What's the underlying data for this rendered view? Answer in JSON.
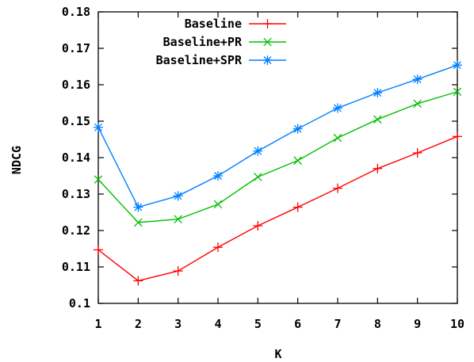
{
  "chart_data": {
    "type": "line",
    "title": "",
    "xlabel": "K",
    "ylabel": "NDCG",
    "x": [
      1,
      2,
      3,
      4,
      5,
      6,
      7,
      8,
      9,
      10
    ],
    "xticks": [
      "1",
      "2",
      "3",
      "4",
      "5",
      "6",
      "7",
      "8",
      "9",
      "10"
    ],
    "yticks": [
      "0.1",
      "0.11",
      "0.12",
      "0.13",
      "0.14",
      "0.15",
      "0.16",
      "0.17",
      "0.18"
    ],
    "ytick_values": [
      0.1,
      0.11,
      0.12,
      0.13,
      0.14,
      0.15,
      0.16,
      0.17,
      0.18
    ],
    "xlim": [
      1,
      10
    ],
    "ylim": [
      0.1,
      0.18
    ],
    "grid": false,
    "legend_position": "top-right",
    "series": [
      {
        "name": "Baseline",
        "color": "#ff0000",
        "marker": "plus",
        "values": [
          0.1147,
          0.1062,
          0.1089,
          0.1154,
          0.1213,
          0.1264,
          0.1316,
          0.137,
          0.1413,
          0.1458
        ]
      },
      {
        "name": "Baseline+PR",
        "color": "#00c000",
        "marker": "cross",
        "values": [
          0.134,
          0.1222,
          0.1231,
          0.1272,
          0.1347,
          0.1392,
          0.1454,
          0.1505,
          0.1548,
          0.1581
        ]
      },
      {
        "name": "Baseline+SPR",
        "color": "#0080ff",
        "marker": "star",
        "values": [
          0.1483,
          0.1264,
          0.1295,
          0.135,
          0.1418,
          0.1479,
          0.1536,
          0.1578,
          0.1615,
          0.1654
        ]
      }
    ]
  }
}
